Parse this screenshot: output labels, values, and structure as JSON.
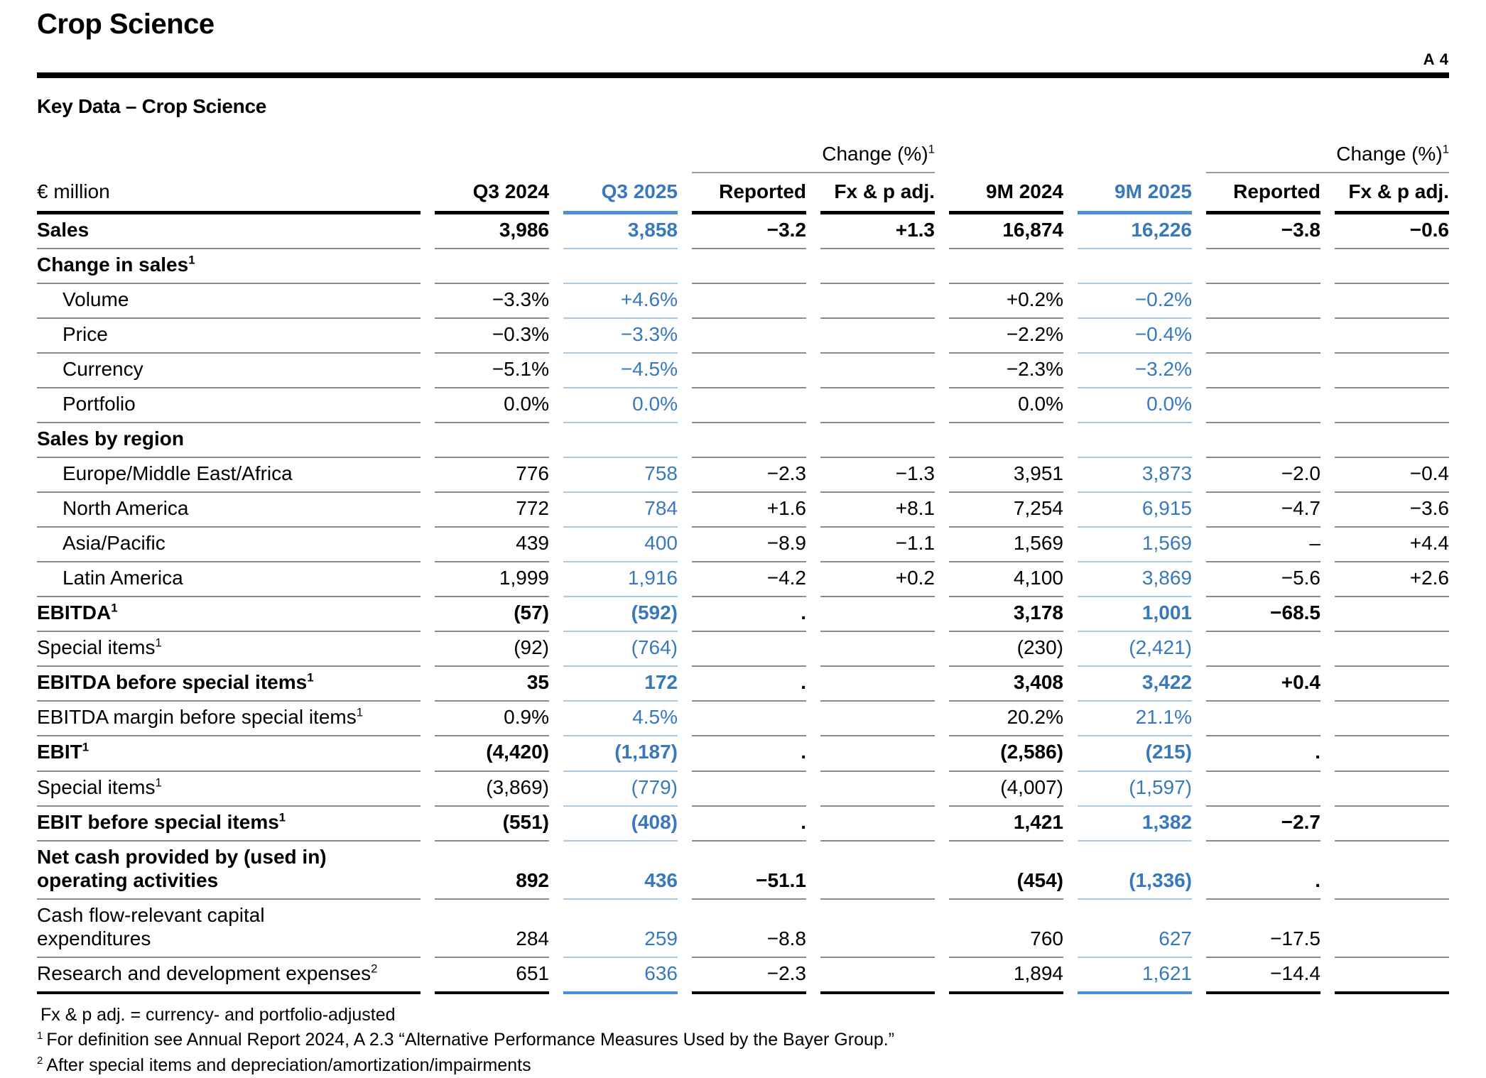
{
  "page": {
    "title": "Crop Science",
    "marker": "A 4",
    "section_title": "Key Data – Crop Science"
  },
  "colors": {
    "accent_blue": "#3879BD",
    "line_blue": "#4A90D5",
    "line_blue_light": "#A6C9E8",
    "line_gray": "#8A8A8A",
    "text_black": "#000000"
  },
  "table": {
    "unit_label": "€ million",
    "change_header": "Change (%)",
    "change_sup": "1",
    "columns": [
      "Q3 2024",
      "Q3 2025",
      "Reported",
      "Fx & p adj.",
      "9M 2024",
      "9M 2025",
      "Reported",
      "Fx & p adj."
    ],
    "blue_column_indexes": [
      1,
      5
    ],
    "rows": [
      {
        "label_lines": [
          "Sales"
        ],
        "sup": "",
        "bold": true,
        "indent": false,
        "values": [
          "3,986",
          "3,858",
          "−3.2",
          "+1.3",
          "16,874",
          "16,226",
          "−3.8",
          "−0.6"
        ]
      },
      {
        "label_lines": [
          "Change in sales"
        ],
        "sup": "1",
        "bold": true,
        "indent": false,
        "values": [
          "",
          "",
          "",
          "",
          "",
          "",
          "",
          ""
        ]
      },
      {
        "label_lines": [
          "Volume"
        ],
        "sup": "",
        "bold": false,
        "indent": true,
        "values": [
          "−3.3%",
          "+4.6%",
          "",
          "",
          "+0.2%",
          "−0.2%",
          "",
          ""
        ]
      },
      {
        "label_lines": [
          "Price"
        ],
        "sup": "",
        "bold": false,
        "indent": true,
        "values": [
          "−0.3%",
          "−3.3%",
          "",
          "",
          "−2.2%",
          "−0.4%",
          "",
          ""
        ]
      },
      {
        "label_lines": [
          "Currency"
        ],
        "sup": "",
        "bold": false,
        "indent": true,
        "values": [
          "−5.1%",
          "−4.5%",
          "",
          "",
          "−2.3%",
          "−3.2%",
          "",
          ""
        ]
      },
      {
        "label_lines": [
          "Portfolio"
        ],
        "sup": "",
        "bold": false,
        "indent": true,
        "values": [
          "0.0%",
          "0.0%",
          "",
          "",
          "0.0%",
          "0.0%",
          "",
          ""
        ]
      },
      {
        "label_lines": [
          "Sales by region"
        ],
        "sup": "",
        "bold": true,
        "indent": false,
        "values": [
          "",
          "",
          "",
          "",
          "",
          "",
          "",
          ""
        ]
      },
      {
        "label_lines": [
          "Europe/Middle East/Africa"
        ],
        "sup": "",
        "bold": false,
        "indent": true,
        "values": [
          "776",
          "758",
          "−2.3",
          "−1.3",
          "3,951",
          "3,873",
          "−2.0",
          "−0.4"
        ]
      },
      {
        "label_lines": [
          "North America"
        ],
        "sup": "",
        "bold": false,
        "indent": true,
        "values": [
          "772",
          "784",
          "+1.6",
          "+8.1",
          "7,254",
          "6,915",
          "−4.7",
          "−3.6"
        ]
      },
      {
        "label_lines": [
          "Asia/Pacific"
        ],
        "sup": "",
        "bold": false,
        "indent": true,
        "values": [
          "439",
          "400",
          "−8.9",
          "−1.1",
          "1,569",
          "1,569",
          "–",
          "+4.4"
        ]
      },
      {
        "label_lines": [
          "Latin America"
        ],
        "sup": "",
        "bold": false,
        "indent": true,
        "values": [
          "1,999",
          "1,916",
          "−4.2",
          "+0.2",
          "4,100",
          "3,869",
          "−5.6",
          "+2.6"
        ]
      },
      {
        "label_lines": [
          "EBITDA"
        ],
        "sup": "1",
        "bold": true,
        "indent": false,
        "values": [
          "(57)",
          "(592)",
          ".",
          "",
          "3,178",
          "1,001",
          "−68.5",
          ""
        ]
      },
      {
        "label_lines": [
          "Special items"
        ],
        "sup": "1",
        "bold": false,
        "indent": false,
        "values": [
          "(92)",
          "(764)",
          "",
          "",
          "(230)",
          "(2,421)",
          "",
          ""
        ]
      },
      {
        "label_lines": [
          "EBITDA before special items"
        ],
        "sup": "1",
        "bold": true,
        "indent": false,
        "values": [
          "35",
          "172",
          ".",
          "",
          "3,408",
          "3,422",
          "+0.4",
          ""
        ]
      },
      {
        "label_lines": [
          "EBITDA margin before special items"
        ],
        "sup": "1",
        "bold": false,
        "indent": false,
        "values": [
          "0.9%",
          "4.5%",
          "",
          "",
          "20.2%",
          "21.1%",
          "",
          ""
        ]
      },
      {
        "label_lines": [
          "EBIT"
        ],
        "sup": "1",
        "bold": true,
        "indent": false,
        "values": [
          "(4,420)",
          "(1,187)",
          ".",
          "",
          "(2,586)",
          "(215)",
          ".",
          ""
        ]
      },
      {
        "label_lines": [
          "Special items"
        ],
        "sup": "1",
        "bold": false,
        "indent": false,
        "values": [
          "(3,869)",
          "(779)",
          "",
          "",
          "(4,007)",
          "(1,597)",
          "",
          ""
        ]
      },
      {
        "label_lines": [
          "EBIT before special items"
        ],
        "sup": "1",
        "bold": true,
        "indent": false,
        "values": [
          "(551)",
          "(408)",
          ".",
          "",
          "1,421",
          "1,382",
          "−2.7",
          ""
        ]
      },
      {
        "label_lines": [
          "Net cash provided by (used in)",
          "operating activities"
        ],
        "sup": "",
        "bold": true,
        "indent": false,
        "values": [
          "892",
          "436",
          "−51.1",
          "",
          "(454)",
          "(1,336)",
          ".",
          ""
        ]
      },
      {
        "label_lines": [
          "Cash flow-relevant capital",
          "expenditures"
        ],
        "sup": "",
        "bold": false,
        "indent": false,
        "values": [
          "284",
          "259",
          "−8.8",
          "",
          "760",
          "627",
          "−17.5",
          ""
        ]
      },
      {
        "label_lines": [
          "Research and development expenses"
        ],
        "sup": "2",
        "bold": false,
        "indent": false,
        "values": [
          "651",
          "636",
          "−2.3",
          "",
          "1,894",
          "1,621",
          "−14.4",
          ""
        ]
      }
    ]
  },
  "footnotes": [
    {
      "sup": "",
      "text": "Fx & p adj. = currency- and portfolio-adjusted"
    },
    {
      "sup": "1",
      "text": "For definition see Annual Report 2024, A 2.3 “Alternative Performance Measures Used by the Bayer Group.”"
    },
    {
      "sup": "2",
      "text": "After special items and depreciation/amortization/impairments"
    }
  ]
}
